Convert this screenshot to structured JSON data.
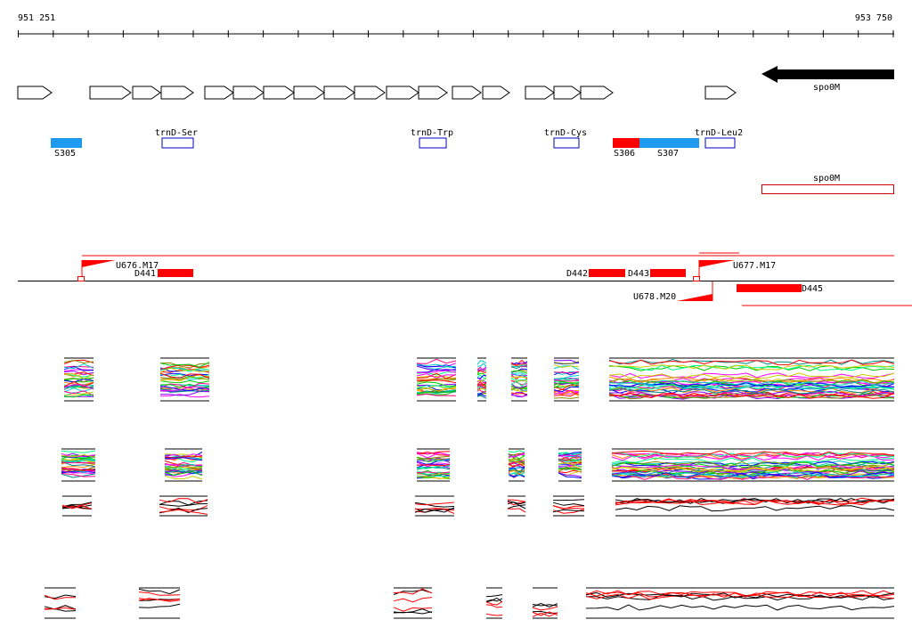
{
  "ruler": {
    "start": "951 251",
    "end": "953 750"
  },
  "genes": [
    {
      "label": "spo0M"
    }
  ],
  "features": [
    {
      "label": "S305"
    },
    {
      "label": "trnD-Ser"
    },
    {
      "label": "trnD-Trp"
    },
    {
      "label": "trnD-Cys"
    },
    {
      "label": "S306"
    },
    {
      "label": "S307"
    },
    {
      "label": "trnD-Leu2"
    },
    {
      "label": "spo0M"
    }
  ],
  "segments": [
    {
      "label": "U676.M17"
    },
    {
      "label": "D441"
    },
    {
      "label": "D442"
    },
    {
      "label": "D443"
    },
    {
      "label": "U677.M17"
    },
    {
      "label": "U678.M20"
    },
    {
      "label": "D445"
    }
  ]
}
